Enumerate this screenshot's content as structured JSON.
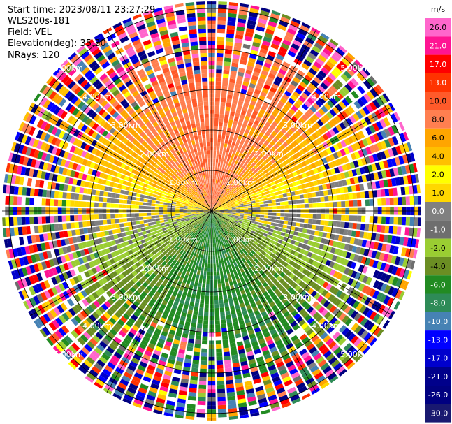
{
  "header": {
    "start_time": "Start time: 2023/08/11 23:27:29",
    "instrument": "WLS200s-181",
    "field": "Field: VEL",
    "elevation": "Elevation(deg): 35.30",
    "nrays": "NRays: 120"
  },
  "chart_data": {
    "type": "heatmap",
    "subtype": "polar-ppi",
    "field": "VEL",
    "elevation_deg": 35.3,
    "nrays": 120,
    "range_rings_km": [
      1.0,
      2.0,
      3.0,
      4.0,
      5.0
    ],
    "range_ring_labels": [
      "1.00km",
      "2.00km",
      "3.00km",
      "4.00km",
      "5.00km"
    ],
    "max_range_km": 5.7,
    "colorbar": {
      "unit": "m/s",
      "tick_labels": [
        "26.0",
        "21.0",
        "17.0",
        "13.0",
        "10.0",
        "8.0",
        "6.0",
        "4.0",
        "2.0",
        "1.0",
        "0.0",
        "-1.0",
        "-2.0",
        "-4.0",
        "-6.0",
        "-8.0",
        "-10.0",
        "-13.0",
        "-17.0",
        "-21.0",
        "-26.0",
        "-30.0"
      ],
      "colors": [
        "#ff66cc",
        "#ff1493",
        "#ff0000",
        "#ff3300",
        "#ff5a2a",
        "#ff7f50",
        "#ffa500",
        "#ffc000",
        "#ffff00",
        "#ffd700",
        "#808080",
        "#6e6e6e",
        "#9acd32",
        "#6b8e23",
        "#228b22",
        "#2e8b57",
        "#4682b4",
        "#0000ff",
        "#0000cd",
        "#00008b",
        "#000080",
        "#191970"
      ]
    },
    "radial_wind_pattern": {
      "north_sector": "positive 4.0 to 10.0 m/s (orange/red)",
      "south_sector": "negative -2.0 to -8.0 m/s (green)",
      "east_west_near_center": "near 0.0 m/s (grey)",
      "beyond_3km": "noisy / mixed"
    }
  }
}
